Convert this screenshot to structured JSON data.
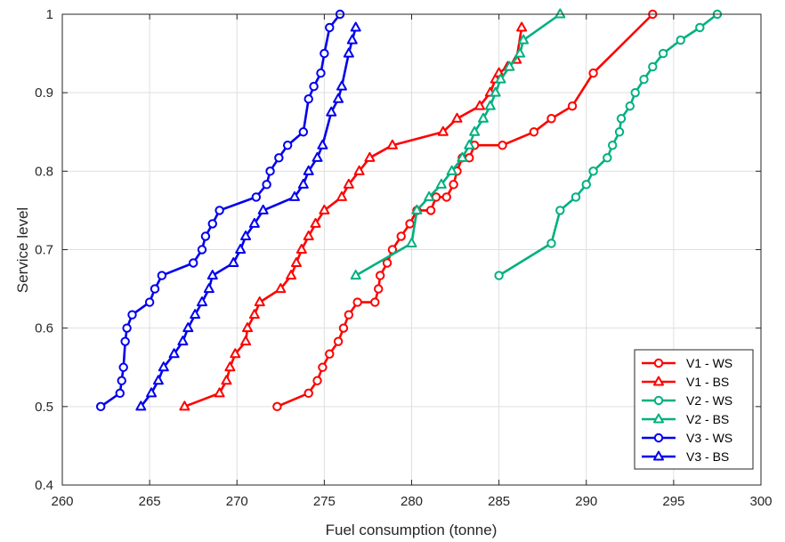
{
  "chart_data": {
    "type": "line",
    "xlabel": "Fuel consumption (tonne)",
    "ylabel": "Service level",
    "xlim": [
      260,
      300
    ],
    "ylim": [
      0.4,
      1.0
    ],
    "xticks": [
      260,
      265,
      270,
      275,
      280,
      285,
      290,
      295,
      300
    ],
    "xtick_labels": [
      "260",
      "265",
      "270",
      "275",
      "280",
      "285",
      "290",
      "295",
      "300"
    ],
    "yticks": [
      0.4,
      0.5,
      0.6,
      0.7,
      0.8,
      0.9,
      1.0
    ],
    "ytick_labels": [
      "0.4",
      "0.5",
      "0.6",
      "0.7",
      "0.8",
      "0.9",
      "1"
    ],
    "grid": true,
    "legend_position": "bottom-right",
    "series": [
      {
        "name": "V1 - WS",
        "color": "#ff0000",
        "marker": "circle",
        "points": [
          [
            272.3,
            0.5
          ],
          [
            274.1,
            0.517
          ],
          [
            274.6,
            0.533
          ],
          [
            274.9,
            0.55
          ],
          [
            275.3,
            0.567
          ],
          [
            275.8,
            0.583
          ],
          [
            276.1,
            0.6
          ],
          [
            276.4,
            0.617
          ],
          [
            276.9,
            0.633
          ],
          [
            277.9,
            0.633
          ],
          [
            278.1,
            0.65
          ],
          [
            278.2,
            0.667
          ],
          [
            278.6,
            0.683
          ],
          [
            278.9,
            0.7
          ],
          [
            279.4,
            0.717
          ],
          [
            279.9,
            0.733
          ],
          [
            280.3,
            0.75
          ],
          [
            281.1,
            0.75
          ],
          [
            281.4,
            0.767
          ],
          [
            282.0,
            0.767
          ],
          [
            282.4,
            0.783
          ],
          [
            282.6,
            0.8
          ],
          [
            282.9,
            0.817
          ],
          [
            283.3,
            0.817
          ],
          [
            283.6,
            0.833
          ],
          [
            285.2,
            0.833
          ],
          [
            287.0,
            0.85
          ],
          [
            288.0,
            0.867
          ],
          [
            289.2,
            0.883
          ],
          [
            290.4,
            0.925
          ],
          [
            293.8,
            1.0
          ]
        ]
      },
      {
        "name": "V1 - BS",
        "color": "#ff0000",
        "marker": "triangle",
        "points": [
          [
            267.0,
            0.5
          ],
          [
            269.0,
            0.517
          ],
          [
            269.4,
            0.533
          ],
          [
            269.6,
            0.55
          ],
          [
            269.9,
            0.567
          ],
          [
            270.5,
            0.583
          ],
          [
            270.6,
            0.6
          ],
          [
            271.0,
            0.617
          ],
          [
            271.3,
            0.633
          ],
          [
            272.5,
            0.65
          ],
          [
            273.1,
            0.667
          ],
          [
            273.4,
            0.683
          ],
          [
            273.7,
            0.7
          ],
          [
            274.1,
            0.717
          ],
          [
            274.5,
            0.733
          ],
          [
            275.0,
            0.75
          ],
          [
            276.0,
            0.767
          ],
          [
            276.4,
            0.783
          ],
          [
            277.0,
            0.8
          ],
          [
            277.6,
            0.817
          ],
          [
            278.9,
            0.833
          ],
          [
            281.8,
            0.85
          ],
          [
            282.6,
            0.867
          ],
          [
            283.9,
            0.883
          ],
          [
            284.5,
            0.9
          ],
          [
            284.8,
            0.917
          ],
          [
            285.0,
            0.925
          ],
          [
            285.5,
            0.933
          ],
          [
            286.0,
            0.942
          ],
          [
            286.3,
            0.983
          ]
        ]
      },
      {
        "name": "V2 - WS",
        "color": "#00b080",
        "marker": "circle",
        "points": [
          [
            285.0,
            0.667
          ],
          [
            288.0,
            0.708
          ],
          [
            288.5,
            0.75
          ],
          [
            289.4,
            0.767
          ],
          [
            290.0,
            0.783
          ],
          [
            290.4,
            0.8
          ],
          [
            291.2,
            0.817
          ],
          [
            291.5,
            0.833
          ],
          [
            291.9,
            0.85
          ],
          [
            292.0,
            0.867
          ],
          [
            292.5,
            0.883
          ],
          [
            292.8,
            0.9
          ],
          [
            293.3,
            0.917
          ],
          [
            293.8,
            0.933
          ],
          [
            294.4,
            0.95
          ],
          [
            295.4,
            0.967
          ],
          [
            296.5,
            0.983
          ],
          [
            297.5,
            1.0
          ]
        ]
      },
      {
        "name": "V2 - BS",
        "color": "#00b080",
        "marker": "triangle",
        "points": [
          [
            276.8,
            0.667
          ],
          [
            280.0,
            0.708
          ],
          [
            280.3,
            0.75
          ],
          [
            281.0,
            0.767
          ],
          [
            281.7,
            0.783
          ],
          [
            282.3,
            0.8
          ],
          [
            282.9,
            0.817
          ],
          [
            283.3,
            0.833
          ],
          [
            283.6,
            0.85
          ],
          [
            284.1,
            0.867
          ],
          [
            284.5,
            0.883
          ],
          [
            284.8,
            0.9
          ],
          [
            285.1,
            0.917
          ],
          [
            285.6,
            0.933
          ],
          [
            286.2,
            0.95
          ],
          [
            286.4,
            0.967
          ],
          [
            288.5,
            1.0
          ]
        ]
      },
      {
        "name": "V3 - WS",
        "color": "#0000ee",
        "marker": "circle",
        "points": [
          [
            262.2,
            0.5
          ],
          [
            263.3,
            0.517
          ],
          [
            263.4,
            0.533
          ],
          [
            263.5,
            0.55
          ],
          [
            263.6,
            0.583
          ],
          [
            263.7,
            0.6
          ],
          [
            264.0,
            0.617
          ],
          [
            265.0,
            0.633
          ],
          [
            265.3,
            0.65
          ],
          [
            265.7,
            0.667
          ],
          [
            267.5,
            0.683
          ],
          [
            268.0,
            0.7
          ],
          [
            268.2,
            0.717
          ],
          [
            268.6,
            0.733
          ],
          [
            269.0,
            0.75
          ],
          [
            271.1,
            0.767
          ],
          [
            271.7,
            0.783
          ],
          [
            271.9,
            0.8
          ],
          [
            272.4,
            0.817
          ],
          [
            272.9,
            0.833
          ],
          [
            273.8,
            0.85
          ],
          [
            274.1,
            0.892
          ],
          [
            274.4,
            0.908
          ],
          [
            274.8,
            0.925
          ],
          [
            275.0,
            0.95
          ],
          [
            275.3,
            0.983
          ],
          [
            275.9,
            1.0
          ]
        ]
      },
      {
        "name": "V3 - BS",
        "color": "#0000ee",
        "marker": "triangle",
        "points": [
          [
            264.5,
            0.5
          ],
          [
            265.1,
            0.517
          ],
          [
            265.5,
            0.533
          ],
          [
            265.8,
            0.55
          ],
          [
            266.4,
            0.567
          ],
          [
            266.9,
            0.583
          ],
          [
            267.2,
            0.6
          ],
          [
            267.6,
            0.617
          ],
          [
            268.0,
            0.633
          ],
          [
            268.4,
            0.65
          ],
          [
            268.6,
            0.667
          ],
          [
            269.8,
            0.683
          ],
          [
            270.2,
            0.7
          ],
          [
            270.5,
            0.717
          ],
          [
            271.0,
            0.733
          ],
          [
            271.5,
            0.75
          ],
          [
            273.3,
            0.767
          ],
          [
            273.8,
            0.783
          ],
          [
            274.1,
            0.8
          ],
          [
            274.6,
            0.817
          ],
          [
            274.9,
            0.833
          ],
          [
            275.4,
            0.875
          ],
          [
            275.8,
            0.892
          ],
          [
            276.0,
            0.908
          ],
          [
            276.4,
            0.95
          ],
          [
            276.6,
            0.967
          ],
          [
            276.8,
            0.983
          ]
        ]
      }
    ]
  }
}
